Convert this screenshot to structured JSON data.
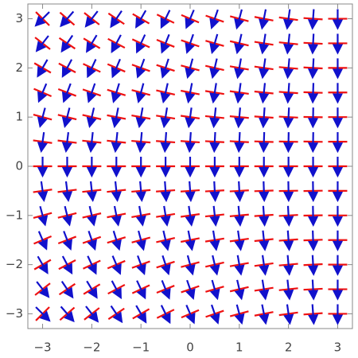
{
  "chart_data": {
    "type": "field",
    "x": [
      -3,
      -2.5,
      -2,
      -1.5,
      -1,
      -0.5,
      0,
      0.5,
      1,
      1.5,
      2,
      2.5,
      3
    ],
    "y": [
      -3,
      -2.5,
      -2,
      -1.5,
      -1,
      -0.5,
      0,
      0.5,
      1,
      1.5,
      2,
      2.5,
      3
    ],
    "angles": [
      [
        45,
        41,
        38,
        34,
        30,
        26,
        23,
        19,
        15,
        11,
        8,
        4,
        0
      ],
      [
        38,
        34,
        31,
        28,
        25,
        22,
        19,
        16,
        13,
        9,
        6,
        3,
        0
      ],
      [
        30,
        28,
        25,
        23,
        20,
        18,
        15,
        13,
        10,
        8,
        5,
        3,
        0
      ],
      [
        23,
        21,
        19,
        17,
        15,
        13,
        11,
        9,
        8,
        6,
        4,
        2,
        0
      ],
      [
        15,
        14,
        13,
        11,
        10,
        9,
        8,
        6,
        5,
        4,
        3,
        1,
        0
      ],
      [
        8,
        7,
        6,
        6,
        5,
        4,
        4,
        3,
        3,
        2,
        1,
        1,
        0
      ],
      [
        0,
        0,
        0,
        0,
        0,
        0,
        0,
        0,
        0,
        0,
        0,
        0,
        0
      ],
      [
        -8,
        -7,
        -6,
        -6,
        -5,
        -4,
        -4,
        -3,
        -3,
        -2,
        -1,
        -1,
        0
      ],
      [
        -15,
        -14,
        -13,
        -11,
        -10,
        -9,
        -8,
        -6,
        -5,
        -4,
        -3,
        -1,
        0
      ],
      [
        -23,
        -21,
        -19,
        -17,
        -15,
        -13,
        -11,
        -9,
        -8,
        -6,
        -4,
        -2,
        0
      ],
      [
        -30,
        -28,
        -25,
        -23,
        -20,
        -18,
        -15,
        -13,
        -10,
        -8,
        -5,
        -3,
        0
      ],
      [
        -38,
        -34,
        -31,
        -28,
        -25,
        -22,
        -19,
        -16,
        -13,
        -9,
        -6,
        -3,
        0
      ],
      [
        -45,
        -41,
        -38,
        -34,
        -30,
        -26,
        -23,
        -19,
        -15,
        -11,
        -8,
        -4,
        0
      ]
    ],
    "line_color": "#ee1111",
    "arrow_color": "#1111cc",
    "xlim": [
      -3.3,
      3.3
    ],
    "ylim": [
      -3.3,
      3.3
    ],
    "xticks": [
      {
        "value": -3,
        "label": "−3"
      },
      {
        "value": -2,
        "label": "−2"
      },
      {
        "value": -1,
        "label": "−1"
      },
      0,
      1,
      2,
      3
    ],
    "yticks": [
      {
        "value": -3,
        "label": "−3"
      },
      {
        "value": -2,
        "label": "−2"
      },
      {
        "value": -1,
        "label": "−1"
      },
      0,
      1,
      2,
      3
    ]
  }
}
